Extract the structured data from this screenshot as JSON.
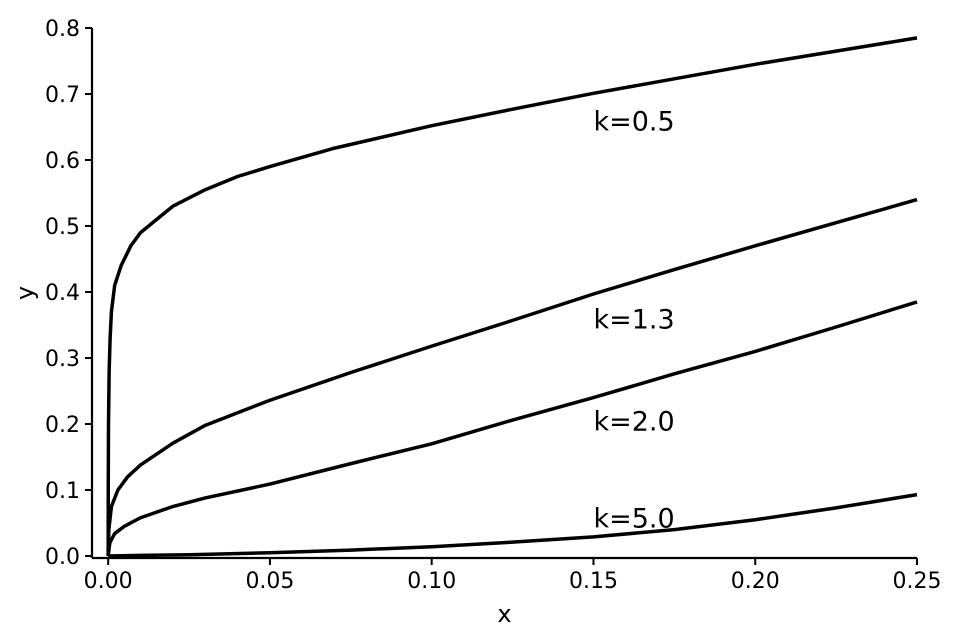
{
  "chart_data": {
    "type": "line",
    "title": "",
    "xlabel": "x",
    "ylabel": "y",
    "xlim": [
      -0.005,
      0.25
    ],
    "ylim": [
      -0.003,
      0.8
    ],
    "xticks": [
      0.0,
      0.05,
      0.1,
      0.15,
      0.2,
      0.25
    ],
    "xtick_labels": [
      "0.00",
      "0.05",
      "0.10",
      "0.15",
      "0.20",
      "0.25"
    ],
    "yticks": [
      0.0,
      0.1,
      0.2,
      0.3,
      0.4,
      0.5,
      0.6,
      0.7,
      0.8
    ],
    "ytick_labels": [
      "0.0",
      "0.1",
      "0.2",
      "0.3",
      "0.4",
      "0.5",
      "0.6",
      "0.7",
      "0.8"
    ],
    "grid": false,
    "legend": "none",
    "series": [
      {
        "name": "k=0.5",
        "label_at": [
          0.15,
          0.66
        ],
        "x": [
          0.0,
          2e-05,
          0.0001,
          0.0003,
          0.0006,
          0.001,
          0.002,
          0.004,
          0.007,
          0.01,
          0.015,
          0.02,
          0.03,
          0.04,
          0.05,
          0.07,
          0.1,
          0.125,
          0.15,
          0.175,
          0.2,
          0.225,
          0.25
        ],
        "y": [
          0.0,
          0.1,
          0.2,
          0.28,
          0.33,
          0.37,
          0.41,
          0.44,
          0.47,
          0.49,
          0.51,
          0.53,
          0.555,
          0.575,
          0.59,
          0.618,
          0.652,
          0.677,
          0.701,
          0.723,
          0.745,
          0.765,
          0.785
        ]
      },
      {
        "name": "k=1.3",
        "label_at": [
          0.15,
          0.36
        ],
        "x": [
          0.0,
          0.0002,
          0.001,
          0.003,
          0.006,
          0.01,
          0.02,
          0.03,
          0.05,
          0.075,
          0.1,
          0.125,
          0.15,
          0.175,
          0.2,
          0.225,
          0.25
        ],
        "y": [
          0.0,
          0.04,
          0.075,
          0.1,
          0.12,
          0.138,
          0.171,
          0.198,
          0.236,
          0.278,
          0.318,
          0.357,
          0.397,
          0.434,
          0.47,
          0.505,
          0.54
        ]
      },
      {
        "name": "k=2.0",
        "label_at": [
          0.15,
          0.205
        ],
        "x": [
          0.0,
          0.0005,
          0.002,
          0.005,
          0.01,
          0.02,
          0.03,
          0.05,
          0.075,
          0.1,
          0.125,
          0.15,
          0.175,
          0.2,
          0.225,
          0.25
        ],
        "y": [
          0.0,
          0.02,
          0.034,
          0.045,
          0.058,
          0.075,
          0.088,
          0.109,
          0.14,
          0.17,
          0.206,
          0.24,
          0.276,
          0.31,
          0.347,
          0.385
        ]
      },
      {
        "name": "k=5.0",
        "label_at": [
          0.15,
          0.058
        ],
        "x": [
          0.0,
          0.01,
          0.025,
          0.05,
          0.075,
          0.1,
          0.125,
          0.15,
          0.175,
          0.2,
          0.225,
          0.25
        ],
        "y": [
          0.0,
          0.001,
          0.002,
          0.005,
          0.009,
          0.014,
          0.021,
          0.029,
          0.04,
          0.055,
          0.073,
          0.093
        ]
      }
    ]
  }
}
